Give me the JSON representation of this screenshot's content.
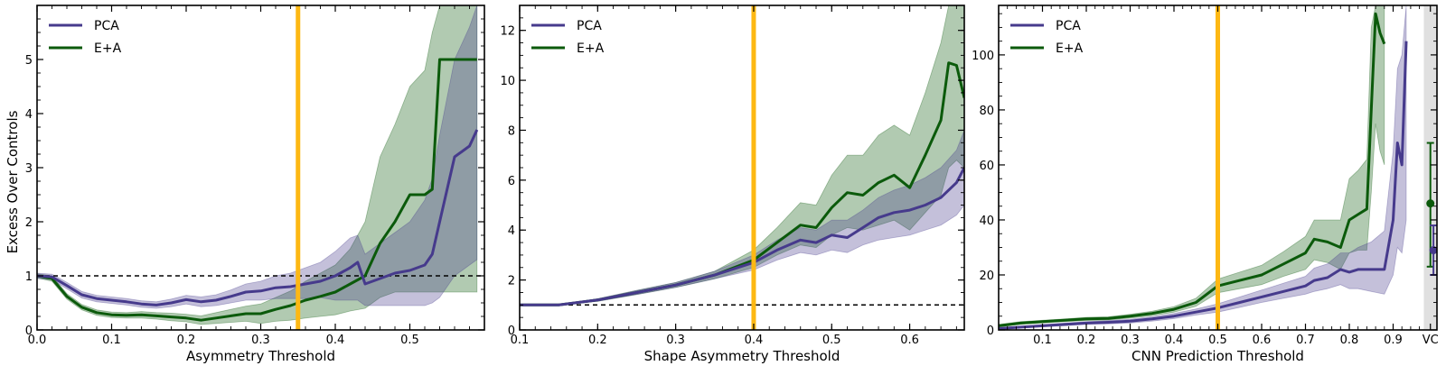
{
  "colors": {
    "pca": "#463a8c",
    "ea": "#0b5a0b",
    "threshold": "#fdb813",
    "vc_band": "#e0e0e0"
  },
  "shared": {
    "ylabel": "Excess Over Controls"
  },
  "chart_data": [
    {
      "type": "line",
      "xlabel": "Asymmetry Threshold",
      "xlim": [
        0.0,
        0.6
      ],
      "ylim": [
        0,
        6
      ],
      "xticks": [
        "0.0",
        "0.1",
        "0.2",
        "0.3",
        "0.4",
        "0.5"
      ],
      "yticks": [
        "0",
        "1",
        "2",
        "3",
        "4",
        "5"
      ],
      "threshold": 0.35,
      "hline": 1,
      "legend": {
        "position": "top-left",
        "entries": [
          "PCA",
          "E+A"
        ]
      },
      "series": [
        {
          "name": "PCA",
          "x": [
            0.0,
            0.02,
            0.04,
            0.06,
            0.08,
            0.1,
            0.12,
            0.14,
            0.16,
            0.18,
            0.2,
            0.22,
            0.24,
            0.26,
            0.28,
            0.3,
            0.32,
            0.34,
            0.36,
            0.38,
            0.4,
            0.42,
            0.43,
            0.44,
            0.46,
            0.48,
            0.5,
            0.52,
            0.53,
            0.54,
            0.56,
            0.57,
            0.58,
            0.59
          ],
          "y": [
            1.0,
            0.98,
            0.82,
            0.65,
            0.58,
            0.55,
            0.52,
            0.48,
            0.46,
            0.5,
            0.56,
            0.52,
            0.55,
            0.62,
            0.7,
            0.72,
            0.78,
            0.8,
            0.85,
            0.9,
            1.0,
            1.15,
            1.25,
            0.85,
            0.95,
            1.05,
            1.1,
            1.2,
            1.4,
            2.0,
            3.2,
            3.3,
            3.4,
            3.7
          ],
          "lower": [
            0.95,
            0.93,
            0.76,
            0.59,
            0.52,
            0.49,
            0.46,
            0.42,
            0.4,
            0.43,
            0.48,
            0.43,
            0.45,
            0.5,
            0.55,
            0.55,
            0.58,
            0.58,
            0.58,
            0.6,
            0.55,
            0.55,
            0.55,
            0.45,
            0.45,
            0.45,
            0.45,
            0.45,
            0.5,
            0.6,
            1.0,
            1.1,
            1.2,
            1.3
          ],
          "upper": [
            1.05,
            1.03,
            0.88,
            0.71,
            0.64,
            0.61,
            0.58,
            0.54,
            0.52,
            0.57,
            0.64,
            0.61,
            0.65,
            0.74,
            0.85,
            0.9,
            1.0,
            1.05,
            1.15,
            1.25,
            1.45,
            1.7,
            1.75,
            1.4,
            1.6,
            1.8,
            2.0,
            2.4,
            2.8,
            3.6,
            5.0,
            5.3,
            5.6,
            6.0
          ]
        },
        {
          "name": "E+A",
          "x": [
            0.0,
            0.02,
            0.04,
            0.06,
            0.08,
            0.1,
            0.12,
            0.14,
            0.16,
            0.18,
            0.2,
            0.22,
            0.24,
            0.26,
            0.28,
            0.3,
            0.32,
            0.34,
            0.36,
            0.38,
            0.4,
            0.42,
            0.44,
            0.46,
            0.48,
            0.5,
            0.52,
            0.53,
            0.54,
            0.55,
            0.58,
            0.59
          ],
          "y": [
            1.0,
            0.95,
            0.62,
            0.42,
            0.32,
            0.28,
            0.27,
            0.28,
            0.26,
            0.24,
            0.22,
            0.18,
            0.22,
            0.26,
            0.3,
            0.3,
            0.38,
            0.45,
            0.55,
            0.62,
            0.7,
            0.85,
            1.0,
            1.6,
            2.0,
            2.5,
            2.5,
            2.6,
            5.0,
            5.0,
            5.0,
            5.0
          ],
          "lower": [
            0.96,
            0.9,
            0.57,
            0.37,
            0.27,
            0.23,
            0.22,
            0.22,
            0.2,
            0.17,
            0.15,
            0.1,
            0.12,
            0.14,
            0.16,
            0.12,
            0.16,
            0.18,
            0.22,
            0.25,
            0.28,
            0.35,
            0.4,
            0.6,
            0.7,
            0.7,
            0.7,
            0.7,
            0.7,
            0.7,
            0.7,
            0.7
          ],
          "upper": [
            1.04,
            1.0,
            0.67,
            0.47,
            0.37,
            0.33,
            0.32,
            0.34,
            0.32,
            0.31,
            0.29,
            0.26,
            0.32,
            0.38,
            0.44,
            0.48,
            0.6,
            0.72,
            0.9,
            1.05,
            1.2,
            1.5,
            2.0,
            3.2,
            3.8,
            4.5,
            4.8,
            5.5,
            6.0,
            6.0,
            6.0,
            6.0
          ]
        }
      ]
    },
    {
      "type": "line",
      "xlabel": "Shape Asymmetry Threshold",
      "xlim": [
        0.1,
        0.67
      ],
      "ylim": [
        0,
        13
      ],
      "xticks": [
        "0.1",
        "0.2",
        "0.3",
        "0.4",
        "0.5",
        "0.6"
      ],
      "yticks": [
        "0",
        "2",
        "4",
        "6",
        "8",
        "10",
        "12"
      ],
      "threshold": 0.4,
      "hline": 1,
      "legend": {
        "position": "top-left",
        "entries": [
          "PCA",
          "E+A"
        ]
      },
      "series": [
        {
          "name": "PCA",
          "x": [
            0.1,
            0.15,
            0.2,
            0.25,
            0.3,
            0.35,
            0.4,
            0.43,
            0.46,
            0.48,
            0.5,
            0.52,
            0.54,
            0.56,
            0.58,
            0.6,
            0.62,
            0.64,
            0.66,
            0.67
          ],
          "y": [
            1.0,
            1.0,
            1.2,
            1.5,
            1.8,
            2.2,
            2.7,
            3.2,
            3.6,
            3.5,
            3.8,
            3.7,
            4.1,
            4.5,
            4.7,
            4.8,
            5.0,
            5.3,
            5.9,
            6.5
          ],
          "lower": [
            1.0,
            1.0,
            1.15,
            1.42,
            1.7,
            2.05,
            2.4,
            2.8,
            3.1,
            3.0,
            3.2,
            3.1,
            3.4,
            3.6,
            3.7,
            3.8,
            4.0,
            4.2,
            4.6,
            5.0
          ],
          "upper": [
            1.0,
            1.0,
            1.25,
            1.58,
            1.9,
            2.35,
            3.0,
            3.6,
            4.1,
            4.0,
            4.4,
            4.4,
            4.8,
            5.3,
            5.6,
            5.8,
            6.1,
            6.5,
            7.2,
            8.0
          ]
        },
        {
          "name": "E+A",
          "x": [
            0.1,
            0.15,
            0.2,
            0.25,
            0.3,
            0.35,
            0.4,
            0.43,
            0.46,
            0.48,
            0.5,
            0.52,
            0.54,
            0.56,
            0.58,
            0.6,
            0.62,
            0.64,
            0.65,
            0.66,
            0.67
          ],
          "y": [
            1.0,
            1.0,
            1.2,
            1.5,
            1.8,
            2.2,
            2.8,
            3.5,
            4.2,
            4.1,
            4.9,
            5.5,
            5.4,
            5.9,
            6.2,
            5.7,
            7.0,
            8.4,
            10.7,
            10.6,
            9.3
          ],
          "lower": [
            1.0,
            1.0,
            1.15,
            1.42,
            1.7,
            2.05,
            2.5,
            3.0,
            3.4,
            3.3,
            3.8,
            4.1,
            4.0,
            4.2,
            4.4,
            4.0,
            4.7,
            5.4,
            6.5,
            6.8,
            6.5
          ],
          "upper": [
            1.0,
            1.0,
            1.25,
            1.58,
            1.9,
            2.35,
            3.2,
            4.1,
            5.1,
            5.0,
            6.2,
            7.0,
            7.0,
            7.8,
            8.2,
            7.8,
            9.5,
            11.5,
            13.0,
            13.0,
            13.0
          ]
        }
      ]
    },
    {
      "type": "line",
      "xlabel": "CNN Prediction Threshold",
      "xlim": [
        0.0,
        1.0
      ],
      "ylim": [
        0,
        118
      ],
      "xticks": [
        "0.1",
        "0.2",
        "0.3",
        "0.4",
        "0.5",
        "0.6",
        "0.7",
        "0.8",
        "0.9",
        "VC"
      ],
      "yticks": [
        "0",
        "20",
        "40",
        "60",
        "80",
        "100"
      ],
      "threshold": 0.5,
      "legend": {
        "position": "top-left",
        "entries": [
          "PCA",
          "E+A"
        ]
      },
      "vc_band": [
        0.97,
        1.0
      ],
      "vc_points": [
        {
          "name": "E+A",
          "x": 0.985,
          "y": 46,
          "low": 23,
          "high": 68
        },
        {
          "name": "PCA",
          "x": 0.992,
          "y": 29,
          "low": 20,
          "high": 38
        }
      ],
      "series": [
        {
          "name": "PCA",
          "x": [
            0.0,
            0.05,
            0.1,
            0.15,
            0.2,
            0.25,
            0.3,
            0.35,
            0.4,
            0.45,
            0.5,
            0.55,
            0.6,
            0.65,
            0.7,
            0.72,
            0.75,
            0.78,
            0.8,
            0.82,
            0.85,
            0.88,
            0.9,
            0.91,
            0.92,
            0.93
          ],
          "y": [
            0.5,
            1.0,
            1.5,
            2.0,
            2.5,
            2.8,
            3.2,
            4.0,
            5.0,
            6.5,
            8.0,
            10.0,
            12.0,
            14.0,
            16.0,
            18.0,
            19.0,
            22.0,
            21.0,
            22.0,
            22.0,
            22.0,
            40.0,
            68.0,
            60.0,
            105.0
          ],
          "lower": [
            0.3,
            0.7,
            1.1,
            1.5,
            2.0,
            2.2,
            2.5,
            3.2,
            4.1,
            5.4,
            6.5,
            8.2,
            10.0,
            11.5,
            13.0,
            14.0,
            15.0,
            16.5,
            15.0,
            15.0,
            14.0,
            13.0,
            20.0,
            30.0,
            28.0,
            40.0
          ],
          "upper": [
            0.7,
            1.3,
            1.9,
            2.5,
            3.0,
            3.4,
            3.9,
            4.8,
            6.0,
            7.6,
            9.5,
            12.0,
            14.5,
            17.0,
            19.5,
            22.5,
            24.0,
            28.0,
            28.0,
            30.0,
            32.0,
            36.0,
            65.0,
            95.0,
            100.0,
            118.0
          ]
        },
        {
          "name": "E+A",
          "x": [
            0.0,
            0.05,
            0.1,
            0.15,
            0.2,
            0.25,
            0.3,
            0.35,
            0.4,
            0.45,
            0.5,
            0.55,
            0.6,
            0.65,
            0.7,
            0.72,
            0.75,
            0.78,
            0.8,
            0.82,
            0.84,
            0.85,
            0.86,
            0.87,
            0.88
          ],
          "y": [
            1.5,
            2.5,
            3.0,
            3.5,
            4.0,
            4.2,
            5.0,
            6.0,
            7.5,
            10.0,
            16.0,
            18.0,
            20.0,
            24.0,
            28.0,
            33.0,
            32.0,
            30.0,
            40.0,
            42.0,
            44.0,
            80.0,
            115.0,
            108.0,
            104.0
          ],
          "lower": [
            1.0,
            2.0,
            2.5,
            3.0,
            3.4,
            3.6,
            4.3,
            5.2,
            6.5,
            8.6,
            13.5,
            15.0,
            16.5,
            19.5,
            22.0,
            25.5,
            24.5,
            22.0,
            28.0,
            29.0,
            29.0,
            50.0,
            75.0,
            65.0,
            60.0
          ],
          "upper": [
            2.0,
            3.0,
            3.5,
            4.0,
            4.6,
            4.8,
            5.7,
            6.8,
            8.5,
            11.5,
            18.5,
            21.0,
            23.5,
            28.5,
            34.0,
            40.0,
            40.0,
            40.0,
            55.0,
            58.0,
            62.0,
            110.0,
            118.0,
            118.0,
            118.0
          ]
        }
      ]
    }
  ]
}
